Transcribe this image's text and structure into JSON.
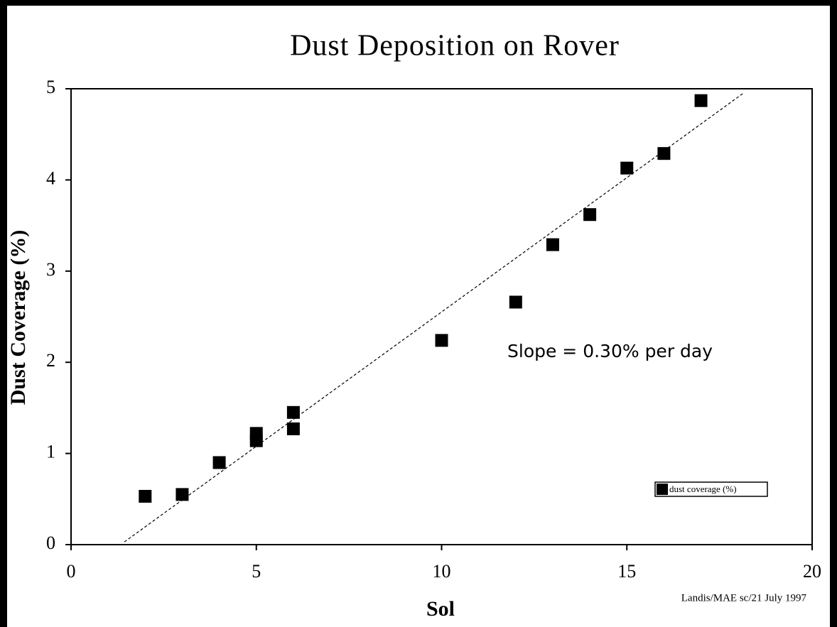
{
  "chart_data": {
    "type": "scatter",
    "title": "Dust Deposition on Rover",
    "xlabel": "Sol",
    "ylabel": "Dust Coverage (%)",
    "series": [
      {
        "name": "dust coverage (%)",
        "color": "#000000",
        "x": [
          2,
          3,
          4,
          5,
          5,
          6,
          6,
          10,
          12,
          13,
          14,
          15,
          16,
          17
        ],
        "values": [
          0.53,
          0.55,
          0.9,
          1.22,
          1.14,
          1.45,
          1.27,
          2.24,
          2.66,
          3.29,
          3.62,
          4.13,
          4.29,
          4.87
        ]
      }
    ],
    "trendline": {
      "x": [
        1.44,
        18.14
      ],
      "values": [
        0.03,
        4.95
      ],
      "color": "#000000"
    },
    "annotation": "Slope = 0.30% per day",
    "footer": "Landis/MAE sc/21 July 1997",
    "xlim": [
      0,
      20
    ],
    "ylim": [
      0,
      5
    ],
    "xticks": [
      0,
      5,
      10,
      15,
      20
    ],
    "yticks": [
      0,
      1,
      2,
      3,
      4,
      5
    ],
    "grid": false,
    "legend": "lower right"
  }
}
